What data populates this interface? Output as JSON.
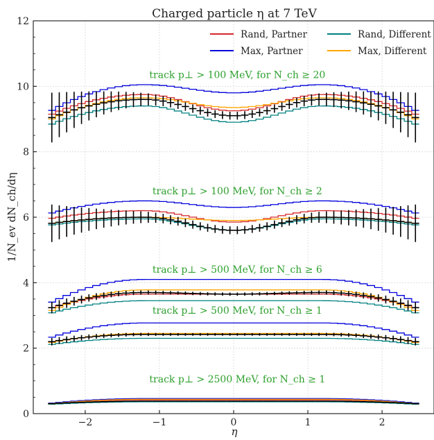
{
  "chart_data": {
    "type": "line",
    "title": "Charged particle η at 7 TeV",
    "xlabel": "η",
    "ylabel": "1/N_ev dN_ch/dη",
    "xlim": [
      -2.7,
      2.7
    ],
    "ylim": [
      0,
      12
    ],
    "xticks": [
      -2,
      -1,
      0,
      1,
      2
    ],
    "yticks": [
      0,
      2,
      4,
      6,
      8,
      10,
      12
    ],
    "grid": true,
    "legend_position": "top-right",
    "legend": [
      {
        "name": "Rand, Partner",
        "color": "#d62728"
      },
      {
        "name": "Max, Partner",
        "color": "#0000dd"
      },
      {
        "name": "Rand, Different",
        "color": "#008080"
      },
      {
        "name": "Max, Different",
        "color": "#ffa500"
      }
    ],
    "groups": [
      {
        "label": "track p⊥ > 100 MeV, for N_ch ≥ 20",
        "label_y": 10.25,
        "data": {
          "center": 9.1,
          "peak": 9.6,
          "edge": 9.0,
          "err_center": 0.12,
          "err_edge": 0.8
        },
        "series": {
          "Rand, Partner": {
            "center": 9.25,
            "peak": 9.75,
            "edge": 9.1
          },
          "Max, Partner": {
            "center": 9.8,
            "peak": 10.05,
            "edge": 9.2
          },
          "Rand, Different": {
            "center": 8.9,
            "peak": 9.4,
            "edge": 8.8
          },
          "Max, Different": {
            "center": 9.35,
            "peak": 9.65,
            "edge": 8.95
          }
        }
      },
      {
        "label": "track p⊥ > 100 MeV, for N_ch ≥ 2",
        "label_y": 6.7,
        "data": {
          "center": 5.6,
          "peak": 6.0,
          "edge": 5.8,
          "err_center": 0.12,
          "err_edge": 0.6
        },
        "series": {
          "Rand, Partner": {
            "center": 5.85,
            "peak": 6.2,
            "edge": 5.95
          },
          "Max, Partner": {
            "center": 6.3,
            "peak": 6.5,
            "edge": 6.1
          },
          "Rand, Different": {
            "center": 5.6,
            "peak": 5.95,
            "edge": 5.75
          },
          "Max, Different": {
            "center": 5.9,
            "peak": 6.0,
            "edge": 5.8
          }
        }
      },
      {
        "label": "track p⊥ > 500 MeV, for N_ch ≥ 6",
        "label_y": 4.3,
        "data": {
          "center": 3.65,
          "peak": 3.7,
          "edge": 3.2,
          "err_center": 0.05,
          "err_edge": 0.18
        },
        "series": {
          "Rand, Partner": {
            "center": 3.65,
            "peak": 3.65,
            "edge": 3.2
          },
          "Max, Partner": {
            "center": 4.1,
            "peak": 4.1,
            "edge": 3.35
          },
          "Rand, Different": {
            "center": 3.45,
            "peak": 3.45,
            "edge": 3.05
          },
          "Max, Different": {
            "center": 3.78,
            "peak": 3.78,
            "edge": 3.1
          }
        }
      },
      {
        "label": "track p⊥ > 500 MeV, for N_ch ≥ 1",
        "label_y": 3.05,
        "data": {
          "center": 2.42,
          "peak": 2.42,
          "edge": 2.18,
          "err_center": 0.04,
          "err_edge": 0.12
        },
        "series": {
          "Rand, Partner": {
            "center": 2.42,
            "peak": 2.42,
            "edge": 2.18
          },
          "Max, Partner": {
            "center": 2.77,
            "peak": 2.77,
            "edge": 2.3
          },
          "Rand, Different": {
            "center": 2.3,
            "peak": 2.3,
            "edge": 2.1
          },
          "Max, Different": {
            "center": 2.45,
            "peak": 2.45,
            "edge": 2.15
          }
        }
      },
      {
        "label": "track p⊥ > 2500 MeV, for N_ch ≥ 1",
        "label_y": 0.95,
        "data": {
          "center": 0.38,
          "peak": 0.38,
          "edge": 0.3,
          "err_center": 0.01,
          "err_edge": 0.02
        },
        "series": {
          "Rand, Partner": {
            "center": 0.42,
            "peak": 0.42,
            "edge": 0.3
          },
          "Max, Partner": {
            "center": 0.46,
            "peak": 0.46,
            "edge": 0.31
          },
          "Rand, Different": {
            "center": 0.36,
            "peak": 0.36,
            "edge": 0.28
          },
          "Max, Different": {
            "center": 0.44,
            "peak": 0.44,
            "edge": 0.29
          }
        }
      }
    ]
  }
}
